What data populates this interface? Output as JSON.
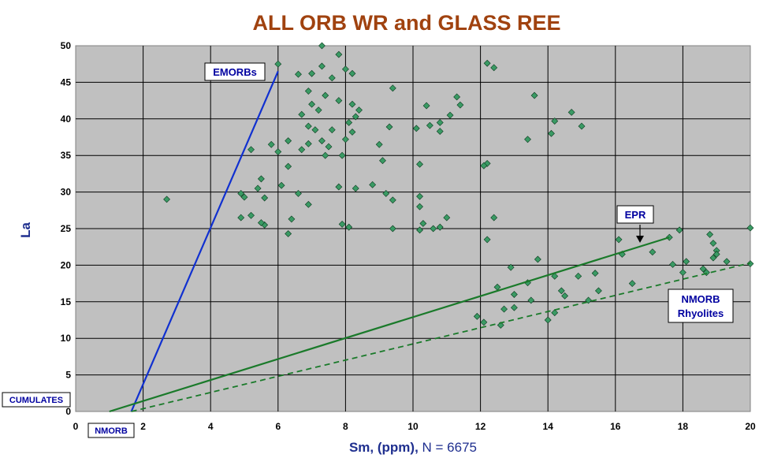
{
  "chart_data": {
    "type": "scatter",
    "title": "ALL ORB WR and GLASS REE",
    "xlabel_main": "Sm, (ppm),",
    "xlabel_count": " N = 6675",
    "ylabel": "La",
    "xlim": [
      0,
      20
    ],
    "ylim": [
      0,
      50
    ],
    "xticks": [
      0,
      2,
      4,
      6,
      8,
      10,
      12,
      14,
      16,
      18,
      20
    ],
    "yticks": [
      0,
      5,
      10,
      15,
      20,
      25,
      30,
      35,
      40,
      45,
      50
    ],
    "grid": true,
    "background": "#c0c0c0",
    "point_color": "#3a9a64",
    "point_edge": "#0b3a1e",
    "annotations": {
      "emorbs": "EMORBs",
      "epr": "EPR",
      "nmorb_rhyolites_1": "NMORB",
      "nmorb_rhyolites_2": "Rhyolites",
      "cumulates": "CUMULATES",
      "nmorb": "NMORB"
    },
    "lines": [
      {
        "name": "EMORBs",
        "color": "#1030d0",
        "style": "solid",
        "x": [
          1.65,
          6.0
        ],
        "y": [
          0.0,
          46.5
        ]
      },
      {
        "name": "EPR",
        "color": "#1a7a2a",
        "style": "solid",
        "x": [
          1.0,
          17.6
        ],
        "y": [
          0.0,
          23.8
        ]
      },
      {
        "name": "NMORB Rhyolites",
        "color": "#1a7a2a",
        "style": "dashed",
        "x": [
          1.65,
          20.0
        ],
        "y": [
          0.0,
          20.3
        ]
      }
    ],
    "series": [
      {
        "points": [
          [
            6.0,
            47.5
          ],
          [
            7.3,
            50.0
          ],
          [
            7.8,
            48.8
          ],
          [
            7.3,
            47.2
          ],
          [
            7.0,
            46.2
          ],
          [
            6.6,
            46.1
          ],
          [
            7.6,
            45.6
          ],
          [
            8.0,
            46.8
          ],
          [
            8.2,
            46.2
          ],
          [
            6.9,
            43.8
          ],
          [
            7.4,
            43.2
          ],
          [
            7.8,
            42.5
          ],
          [
            7.0,
            42.0
          ],
          [
            7.2,
            41.2
          ],
          [
            6.7,
            40.6
          ],
          [
            8.2,
            42.0
          ],
          [
            8.4,
            41.2
          ],
          [
            8.3,
            40.3
          ],
          [
            6.9,
            39.0
          ],
          [
            7.1,
            38.5
          ],
          [
            7.6,
            38.5
          ],
          [
            8.1,
            39.5
          ],
          [
            8.2,
            38.2
          ],
          [
            9.3,
            38.9
          ],
          [
            7.3,
            37.0
          ],
          [
            6.9,
            36.6
          ],
          [
            7.5,
            36.2
          ],
          [
            6.7,
            35.8
          ],
          [
            7.4,
            35.0
          ],
          [
            7.9,
            35.0
          ],
          [
            8.0,
            37.2
          ],
          [
            5.8,
            36.5
          ],
          [
            6.0,
            35.5
          ],
          [
            6.3,
            37.0
          ],
          [
            5.2,
            35.8
          ],
          [
            9.0,
            36.5
          ],
          [
            9.1,
            34.3
          ],
          [
            9.4,
            44.2
          ],
          [
            12.2,
            47.6
          ],
          [
            12.4,
            47.0
          ],
          [
            11.3,
            43.0
          ],
          [
            11.4,
            41.9
          ],
          [
            10.4,
            41.8
          ],
          [
            11.1,
            40.5
          ],
          [
            10.8,
            39.5
          ],
          [
            10.5,
            39.1
          ],
          [
            10.1,
            38.7
          ],
          [
            10.8,
            38.3
          ],
          [
            14.2,
            39.7
          ],
          [
            14.7,
            40.9
          ],
          [
            15.0,
            39.0
          ],
          [
            13.6,
            43.2
          ],
          [
            13.4,
            37.2
          ],
          [
            14.1,
            38.0
          ],
          [
            12.2,
            33.9
          ],
          [
            12.1,
            33.6
          ],
          [
            10.2,
            33.8
          ],
          [
            8.8,
            31.0
          ],
          [
            9.2,
            29.8
          ],
          [
            9.4,
            28.9
          ],
          [
            10.2,
            29.4
          ],
          [
            10.2,
            28.0
          ],
          [
            11.0,
            26.5
          ],
          [
            10.3,
            25.7
          ],
          [
            10.6,
            25.0
          ],
          [
            10.2,
            24.8
          ],
          [
            10.8,
            25.2
          ],
          [
            12.4,
            26.5
          ],
          [
            12.2,
            23.5
          ],
          [
            9.4,
            25.0
          ],
          [
            7.8,
            30.7
          ],
          [
            8.3,
            30.5
          ],
          [
            2.7,
            29.0
          ],
          [
            6.4,
            26.3
          ],
          [
            5.2,
            26.8
          ],
          [
            5.6,
            25.5
          ],
          [
            6.3,
            24.3
          ],
          [
            5.5,
            25.8
          ],
          [
            4.9,
            26.5
          ],
          [
            5.6,
            29.2
          ],
          [
            5.5,
            31.8
          ],
          [
            6.1,
            30.9
          ],
          [
            6.3,
            33.5
          ],
          [
            7.9,
            25.6
          ],
          [
            8.1,
            25.2
          ],
          [
            6.9,
            28.3
          ],
          [
            6.6,
            29.8
          ],
          [
            5.4,
            30.5
          ],
          [
            4.9,
            29.8
          ],
          [
            5.0,
            29.3
          ],
          [
            17.6,
            23.8
          ],
          [
            17.9,
            24.8
          ],
          [
            18.8,
            24.2
          ],
          [
            20.0,
            25.1
          ],
          [
            18.9,
            23.0
          ],
          [
            19.0,
            22.0
          ],
          [
            19.0,
            21.5
          ],
          [
            18.9,
            21.0
          ],
          [
            18.1,
            20.5
          ],
          [
            17.7,
            20.1
          ],
          [
            19.3,
            20.5
          ],
          [
            20.0,
            20.2
          ],
          [
            18.6,
            19.5
          ],
          [
            18.7,
            19.0
          ],
          [
            18.0,
            19.0
          ],
          [
            19.2,
            16.2
          ],
          [
            17.1,
            21.8
          ],
          [
            16.2,
            21.5
          ],
          [
            16.1,
            23.5
          ],
          [
            16.5,
            17.5
          ],
          [
            15.4,
            18.9
          ],
          [
            15.2,
            15.2
          ],
          [
            14.9,
            18.5
          ],
          [
            14.2,
            18.5
          ],
          [
            14.4,
            16.5
          ],
          [
            14.5,
            15.8
          ],
          [
            13.4,
            17.6
          ],
          [
            12.9,
            19.7
          ],
          [
            13.0,
            16.0
          ],
          [
            12.5,
            17.0
          ],
          [
            13.7,
            20.8
          ],
          [
            14.0,
            12.5
          ],
          [
            13.0,
            14.2
          ],
          [
            12.7,
            14.0
          ],
          [
            11.9,
            13.0
          ],
          [
            12.1,
            12.2
          ],
          [
            12.6,
            11.8
          ],
          [
            13.5,
            15.2
          ],
          [
            14.2,
            13.5
          ],
          [
            15.5,
            16.5
          ]
        ]
      }
    ]
  }
}
